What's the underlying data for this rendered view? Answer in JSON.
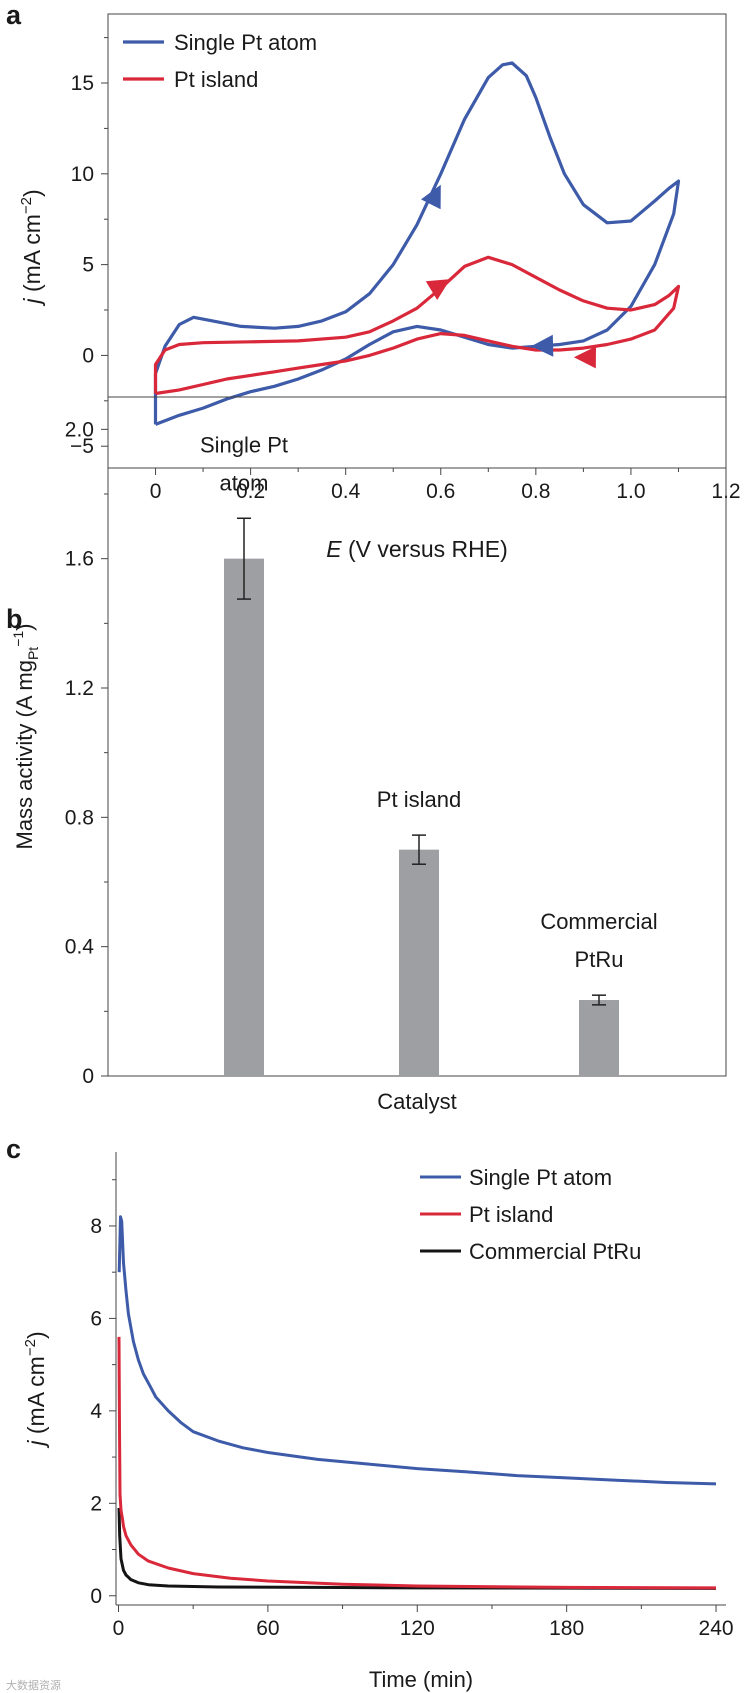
{
  "panel_labels": [
    "a",
    "b",
    "c"
  ],
  "watermark": "大数据资源",
  "chart_data": [
    {
      "type": "line",
      "panel": "a",
      "xlabel_italic": "E",
      "xlabel_rest": " (V versus RHE)",
      "ylabel_italic": "j",
      "ylabel_rest": " (mA cm",
      "ylabel_sup": "−2",
      "ylabel_close": ")",
      "xlim": [
        -0.1,
        1.2
      ],
      "ylim": [
        -6.2,
        18.8
      ],
      "xticks": [
        0,
        0.2,
        0.4,
        0.6,
        0.8,
        1.0,
        1.2
      ],
      "xtick_labels": [
        "0",
        "0.2",
        "0.4",
        "0.6",
        "0.8",
        "1.0",
        "1.2"
      ],
      "yticks": [
        -5,
        0,
        5,
        10,
        15
      ],
      "ytick_labels": [
        "−5",
        "0",
        "5",
        "10",
        "15"
      ],
      "legend_position": "top-left",
      "series": [
        {
          "name": "Single Pt atom",
          "color": "#3d5ba9",
          "x": [
            0.0,
            0.0,
            0.02,
            0.05,
            0.08,
            0.12,
            0.18,
            0.25,
            0.3,
            0.35,
            0.4,
            0.45,
            0.5,
            0.55,
            0.6,
            0.65,
            0.7,
            0.73,
            0.75,
            0.78,
            0.8,
            0.83,
            0.86,
            0.9,
            0.95,
            1.0,
            1.05,
            1.08,
            1.1,
            1.09,
            1.05,
            1.0,
            0.95,
            0.9,
            0.85,
            0.8,
            0.75,
            0.7,
            0.65,
            0.6,
            0.55,
            0.5,
            0.45,
            0.4,
            0.35,
            0.3,
            0.25,
            0.2,
            0.15,
            0.1,
            0.05,
            0.02,
            0.0
          ],
          "y": [
            -3.8,
            -1.0,
            0.5,
            1.7,
            2.1,
            1.9,
            1.6,
            1.5,
            1.6,
            1.9,
            2.4,
            3.4,
            5.0,
            7.2,
            10.0,
            13.0,
            15.3,
            16.0,
            16.1,
            15.4,
            14.2,
            12.0,
            10.0,
            8.3,
            7.3,
            7.4,
            8.5,
            9.2,
            9.6,
            7.8,
            5.0,
            2.7,
            1.4,
            0.8,
            0.6,
            0.5,
            0.4,
            0.6,
            1.0,
            1.4,
            1.6,
            1.3,
            0.6,
            -0.2,
            -0.8,
            -1.3,
            -1.7,
            -2.0,
            -2.4,
            -2.9,
            -3.3,
            -3.6,
            -3.8
          ]
        },
        {
          "name": "Pt island",
          "color": "#d9283a",
          "x": [
            0.0,
            0.0,
            0.02,
            0.05,
            0.1,
            0.2,
            0.3,
            0.4,
            0.45,
            0.5,
            0.55,
            0.6,
            0.65,
            0.7,
            0.75,
            0.8,
            0.85,
            0.9,
            0.95,
            1.0,
            1.05,
            1.08,
            1.1,
            1.09,
            1.05,
            1.0,
            0.95,
            0.9,
            0.85,
            0.8,
            0.75,
            0.7,
            0.65,
            0.6,
            0.55,
            0.5,
            0.45,
            0.4,
            0.35,
            0.3,
            0.25,
            0.2,
            0.15,
            0.1,
            0.05,
            0.0
          ],
          "y": [
            -2.1,
            -0.5,
            0.3,
            0.6,
            0.7,
            0.75,
            0.8,
            1.0,
            1.3,
            1.9,
            2.6,
            3.7,
            4.9,
            5.4,
            5.0,
            4.3,
            3.6,
            3.0,
            2.6,
            2.5,
            2.8,
            3.3,
            3.8,
            2.6,
            1.4,
            0.9,
            0.6,
            0.4,
            0.3,
            0.3,
            0.5,
            0.8,
            1.1,
            1.2,
            0.9,
            0.4,
            0.0,
            -0.3,
            -0.5,
            -0.7,
            -0.9,
            -1.1,
            -1.3,
            -1.6,
            -1.9,
            -2.1
          ]
        }
      ],
      "arrows": [
        {
          "series": 0,
          "x": 0.6,
          "y": 9.4,
          "dx": 0.012,
          "dy": 0.62
        },
        {
          "series": 0,
          "x": 0.79,
          "y": 0.5,
          "dx": -0.05,
          "dy": -0.03
        },
        {
          "series": 1,
          "x": 0.62,
          "y": 4.2,
          "dx": 0.05,
          "dy": 0.8
        },
        {
          "series": 1,
          "x": 0.88,
          "y": -0.1,
          "dx": -0.05,
          "dy": 0.01
        }
      ]
    },
    {
      "type": "bar",
      "panel": "b",
      "xlabel": "Catalyst",
      "ylabel": "Mass activity (A mg",
      "ylabel_sub": "Pt",
      "ylabel_sup": "−1",
      "ylabel_close": ")",
      "ylim": [
        0,
        2.1
      ],
      "yticks": [
        0,
        0.4,
        0.8,
        1.2,
        1.6,
        2.0
      ],
      "ytick_labels": [
        "0",
        "0.4",
        "0.8",
        "1.2",
        "1.6",
        "2.0"
      ],
      "bar_color": "#9d9fa2",
      "categories": [
        "Single Pt atom",
        "Pt island",
        "Commercial PtRu"
      ],
      "category_labels": [
        [
          "Single Pt",
          "atom"
        ],
        [
          "Pt island"
        ],
        [
          "Commercial",
          "PtRu"
        ]
      ],
      "values": [
        1.6,
        0.7,
        0.235
      ],
      "errors": [
        0.125,
        0.045,
        0.015
      ]
    },
    {
      "type": "line",
      "panel": "c",
      "xlabel": "Time (min)",
      "ylabel_italic": "j",
      "ylabel_rest": " (mA cm",
      "ylabel_sup": "−2",
      "ylabel_close": ")",
      "xlim": [
        -1,
        244
      ],
      "ylim": [
        -0.2,
        9.6
      ],
      "xticks": [
        0,
        60,
        120,
        180,
        240
      ],
      "xtick_labels": [
        "0",
        "60",
        "120",
        "180",
        "240"
      ],
      "yticks": [
        0,
        2,
        4,
        6,
        8
      ],
      "ytick_labels": [
        "0",
        "2",
        "4",
        "6",
        "8"
      ],
      "legend_position": "top-right",
      "series": [
        {
          "name": "Single Pt atom",
          "color": "#3d5ba9",
          "x": [
            0.3,
            0.8,
            1.3,
            2,
            3,
            4,
            6,
            8,
            10,
            13,
            15,
            20,
            25,
            30,
            40,
            50,
            60,
            80,
            100,
            120,
            140,
            160,
            180,
            200,
            220,
            240
          ],
          "y": [
            7.0,
            8.2,
            8.1,
            7.2,
            6.6,
            6.1,
            5.5,
            5.1,
            4.8,
            4.5,
            4.3,
            4.0,
            3.75,
            3.55,
            3.35,
            3.2,
            3.1,
            2.95,
            2.85,
            2.75,
            2.68,
            2.6,
            2.55,
            2.5,
            2.45,
            2.42
          ]
        },
        {
          "name": "Pt island",
          "color": "#d9283a",
          "x": [
            0.2,
            0.4,
            0.6,
            1,
            1.5,
            2,
            3,
            5,
            8,
            12,
            20,
            30,
            45,
            60,
            90,
            120,
            180,
            240
          ],
          "y": [
            5.6,
            3.6,
            2.2,
            1.85,
            1.7,
            1.5,
            1.3,
            1.1,
            0.9,
            0.75,
            0.6,
            0.48,
            0.38,
            0.32,
            0.25,
            0.21,
            0.18,
            0.17
          ]
        },
        {
          "name": "Commercial PtRu",
          "color": "#141414",
          "x": [
            0.2,
            0.5,
            1,
            2,
            3,
            5,
            8,
            12,
            20,
            40,
            80,
            120,
            240
          ],
          "y": [
            1.9,
            1.3,
            0.8,
            0.55,
            0.45,
            0.35,
            0.28,
            0.24,
            0.21,
            0.19,
            0.18,
            0.17,
            0.16
          ]
        }
      ]
    }
  ]
}
